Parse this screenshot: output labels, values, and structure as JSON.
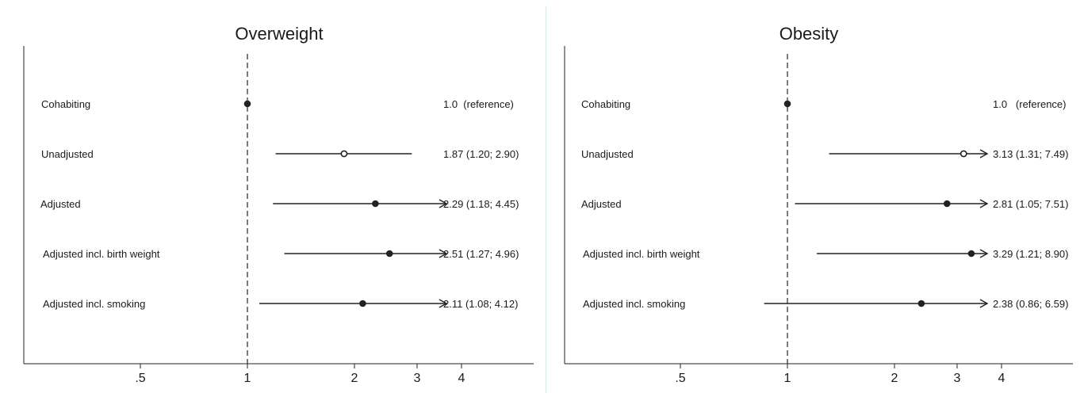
{
  "chart_data": [
    {
      "type": "forest",
      "title": "Overweight",
      "x_scale": "log",
      "x_ticks": [
        0.5,
        1,
        2,
        3,
        4
      ],
      "x_tick_labels": [
        ".5",
        "1",
        "2",
        "3",
        "4"
      ],
      "reference_line": 1,
      "rows": [
        {
          "label": "Cohabiting",
          "estimate": 1.0,
          "lower": null,
          "upper": null,
          "marker": "filled",
          "arrow": false,
          "text": "1.0  (reference)"
        },
        {
          "label": "Unadjusted",
          "estimate": 1.87,
          "lower": 1.2,
          "upper": 2.9,
          "marker": "hollow",
          "arrow": false,
          "text": "1.87 (1.20; 2.90)"
        },
        {
          "label": "Adjusted",
          "estimate": 2.29,
          "lower": 1.18,
          "upper": 4.45,
          "marker": "filled",
          "arrow": true,
          "text": "2.29 (1.18; 4.45)"
        },
        {
          "label": "Adjusted incl. birth weight",
          "estimate": 2.51,
          "lower": 1.27,
          "upper": 4.96,
          "marker": "filled",
          "arrow": true,
          "text": "2.51 (1.27; 4.96)"
        },
        {
          "label": "Adjusted incl. smoking",
          "estimate": 2.11,
          "lower": 1.08,
          "upper": 4.12,
          "marker": "filled",
          "arrow": true,
          "text": "2.11 (1.08; 4.12)"
        }
      ]
    },
    {
      "type": "forest",
      "title": "Obesity",
      "x_scale": "log",
      "x_ticks": [
        0.5,
        1,
        2,
        3,
        4
      ],
      "x_tick_labels": [
        ".5",
        "1",
        "2",
        "3",
        "4"
      ],
      "reference_line": 1,
      "rows": [
        {
          "label": "Cohabiting",
          "estimate": 1.0,
          "lower": null,
          "upper": null,
          "marker": "filled",
          "arrow": false,
          "text": "1.0   (reference)"
        },
        {
          "label": "Unadjusted",
          "estimate": 3.13,
          "lower": 1.31,
          "upper": 7.49,
          "marker": "hollow",
          "arrow": true,
          "text": "3.13 (1.31; 7.49)"
        },
        {
          "label": "Adjusted",
          "estimate": 2.81,
          "lower": 1.05,
          "upper": 7.51,
          "marker": "filled",
          "arrow": true,
          "text": "2.81 (1.05; 7.51)"
        },
        {
          "label": "Adjusted incl. birth weight",
          "estimate": 3.29,
          "lower": 1.21,
          "upper": 8.9,
          "marker": "filled",
          "arrow": true,
          "text": "3.29 (1.21; 8.90)"
        },
        {
          "label": "Adjusted incl. smoking",
          "estimate": 2.38,
          "lower": 0.86,
          "upper": 6.59,
          "marker": "filled",
          "arrow": true,
          "text": "2.38 (0.86; 6.59)"
        }
      ]
    }
  ]
}
